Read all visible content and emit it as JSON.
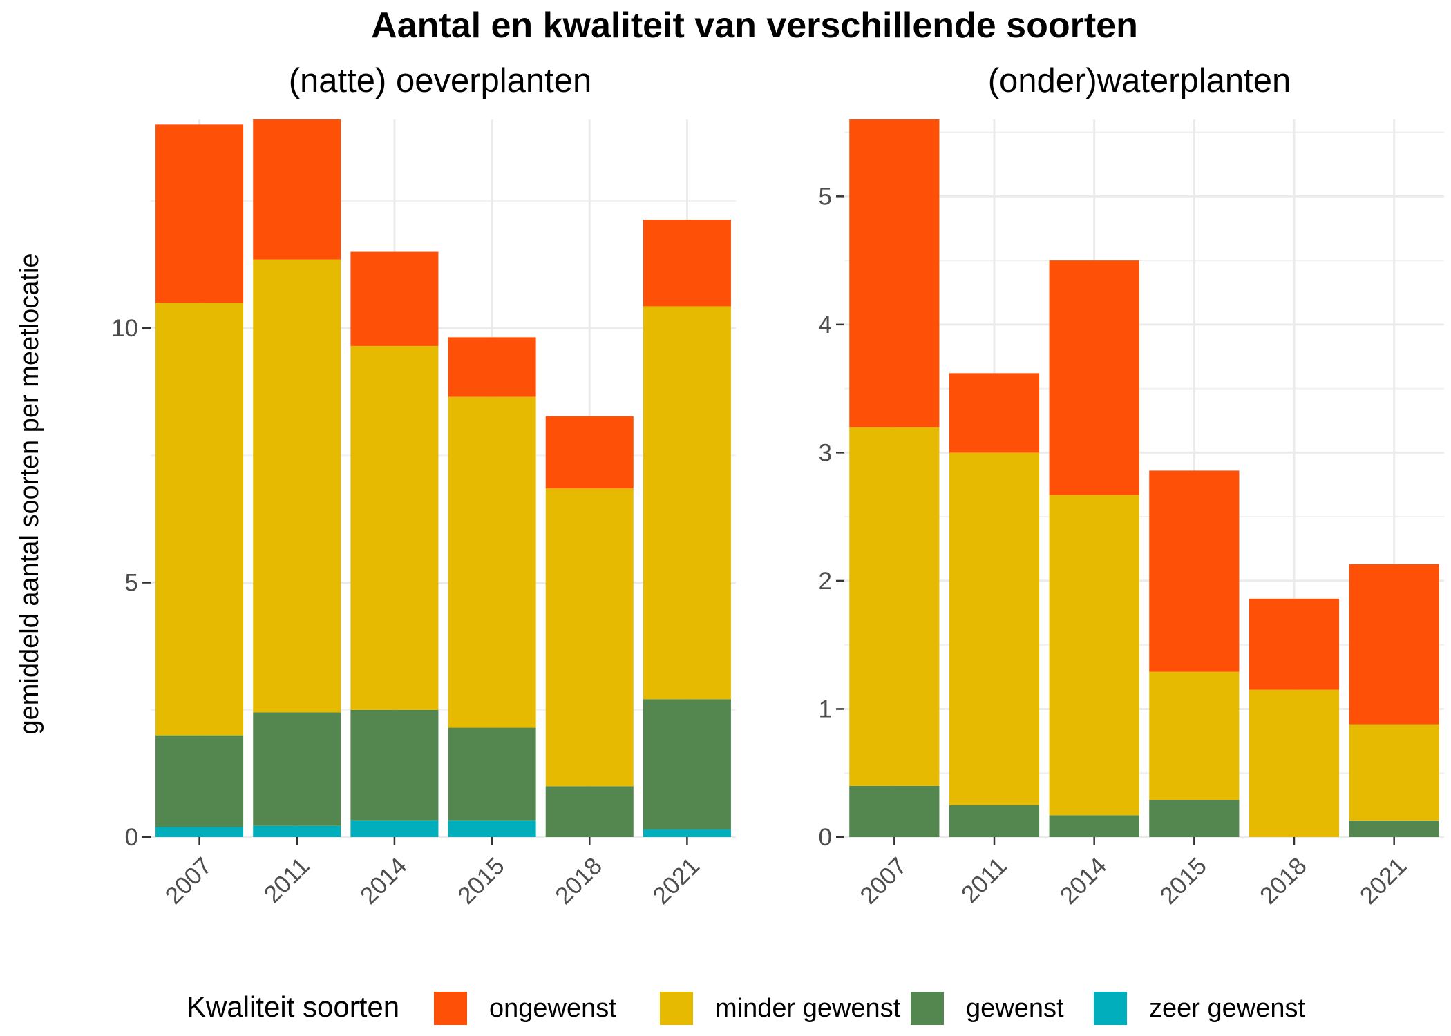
{
  "chart_data": {
    "type": "bar",
    "stacked": true,
    "title": "Aantal en kwaliteit van verschillende soorten",
    "ylabel": "gemiddeld aantal soorten per meetlocatie",
    "legend": {
      "title": "Kwaliteit soorten",
      "position": "bottom",
      "entries": [
        "ongewenst",
        "minder gewenst",
        "gewenst",
        "zeer gewenst"
      ]
    },
    "colors": {
      "ongewenst": "#FF5007",
      "minder gewenst": "#E6BA00",
      "gewenst": "#53874F",
      "zeer gewenst": "#00AFBB"
    },
    "grid": true,
    "panels": [
      {
        "subtitle": "(natte) oeverplanten",
        "categories": [
          "2007",
          "2011",
          "2014",
          "2015",
          "2018",
          "2021"
        ],
        "ylim": [
          0,
          14.1
        ],
        "yticks": [
          0,
          5,
          10
        ],
        "series": [
          {
            "name": "zeer gewenst",
            "values": [
              0.2,
              0.22,
              0.33,
              0.33,
              0.0,
              0.15
            ]
          },
          {
            "name": "gewenst",
            "values": [
              1.8,
              2.23,
              2.17,
              1.82,
              1.0,
              2.56
            ]
          },
          {
            "name": "minder gewenst",
            "values": [
              8.5,
              8.9,
              7.15,
              6.5,
              5.85,
              7.72
            ]
          },
          {
            "name": "ongewenst",
            "values": [
              3.5,
              2.75,
              1.85,
              1.17,
              1.42,
              1.7
            ]
          }
        ]
      },
      {
        "subtitle": "(onder)waterplanten",
        "categories": [
          "2007",
          "2011",
          "2014",
          "2015",
          "2018",
          "2021"
        ],
        "ylim": [
          0,
          5.6
        ],
        "yticks": [
          0,
          1,
          2,
          3,
          4,
          5
        ],
        "series": [
          {
            "name": "zeer gewenst",
            "values": [
              0,
              0,
              0,
              0,
              0,
              0
            ]
          },
          {
            "name": "gewenst",
            "values": [
              0.4,
              0.25,
              0.17,
              0.29,
              0.0,
              0.13
            ]
          },
          {
            "name": "minder gewenst",
            "values": [
              2.8,
              2.75,
              2.5,
              1.0,
              1.15,
              0.75
            ]
          },
          {
            "name": "ongewenst",
            "values": [
              2.4,
              0.62,
              1.83,
              1.57,
              0.71,
              1.25
            ]
          }
        ]
      }
    ]
  }
}
